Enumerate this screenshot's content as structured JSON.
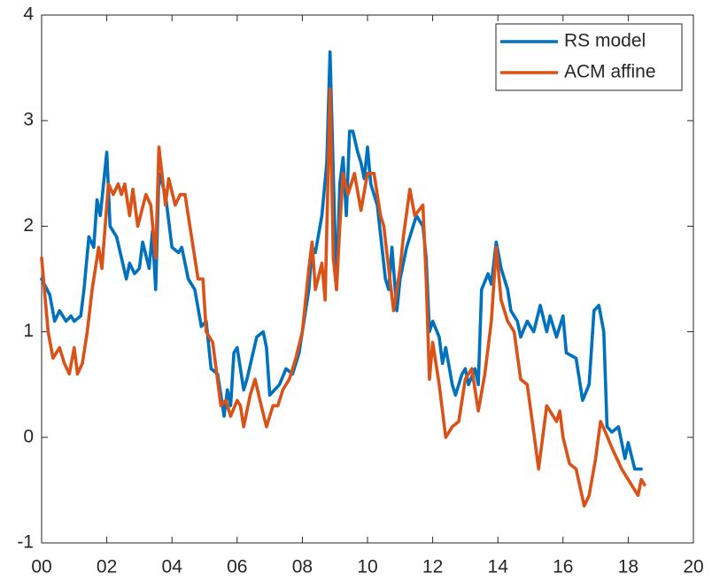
{
  "chart_data": {
    "type": "line",
    "series": [
      {
        "name": "RS model",
        "color": "#0072bd",
        "x": [
          0,
          0.25,
          0.4,
          0.55,
          0.75,
          0.9,
          1.0,
          1.2,
          1.3,
          1.45,
          1.6,
          1.7,
          1.8,
          2.0,
          2.1,
          2.3,
          2.6,
          2.7,
          2.85,
          3.0,
          3.1,
          3.3,
          3.4,
          3.5,
          3.6,
          3.8,
          4.0,
          4.2,
          4.3,
          4.5,
          4.7,
          4.9,
          5.05,
          5.2,
          5.4,
          5.6,
          5.7,
          5.8,
          5.9,
          6.0,
          6.2,
          6.3,
          6.6,
          6.8,
          6.9,
          7.0,
          7.3,
          7.5,
          7.7,
          7.9,
          8.0,
          8.2,
          8.3,
          8.4,
          8.6,
          8.75,
          8.85,
          8.95,
          9.05,
          9.15,
          9.25,
          9.35,
          9.45,
          9.55,
          9.7,
          9.8,
          9.9,
          10.0,
          10.1,
          10.3,
          10.55,
          10.65,
          10.75,
          10.9,
          11.0,
          11.2,
          11.4,
          11.5,
          11.7,
          11.8,
          11.9,
          12.0,
          12.2,
          12.3,
          12.4,
          12.6,
          12.7,
          12.9,
          13.0,
          13.1,
          13.3,
          13.4,
          13.5,
          13.7,
          13.8,
          13.95,
          14.1,
          14.3,
          14.4,
          14.6,
          14.7,
          14.9,
          15.1,
          15.3,
          15.5,
          15.6,
          15.8,
          16.0,
          16.1,
          16.4,
          16.6,
          16.8,
          16.95,
          17.1,
          17.25,
          17.35,
          17.5,
          17.7,
          17.9,
          18.0,
          18.2,
          18.4
        ],
        "values": [
          1.5,
          1.35,
          1.1,
          1.2,
          1.1,
          1.15,
          1.1,
          1.15,
          1.4,
          1.9,
          1.8,
          2.25,
          2.1,
          2.7,
          2.0,
          1.9,
          1.5,
          1.65,
          1.55,
          1.6,
          1.85,
          1.6,
          1.95,
          1.4,
          2.5,
          2.3,
          1.8,
          1.75,
          1.8,
          1.5,
          1.4,
          1.05,
          1.1,
          0.65,
          0.6,
          0.2,
          0.45,
          0.3,
          0.8,
          0.85,
          0.45,
          0.55,
          0.95,
          1.0,
          0.85,
          0.4,
          0.5,
          0.65,
          0.6,
          0.8,
          1.0,
          1.4,
          1.8,
          1.75,
          2.1,
          2.6,
          3.65,
          2.5,
          1.4,
          2.4,
          2.65,
          2.1,
          2.9,
          2.9,
          2.7,
          2.6,
          2.45,
          2.75,
          2.4,
          2.2,
          1.5,
          1.4,
          1.8,
          1.2,
          1.5,
          1.8,
          2.0,
          2.1,
          2.0,
          1.7,
          1.0,
          1.1,
          0.95,
          0.7,
          0.85,
          0.5,
          0.4,
          0.6,
          0.65,
          0.5,
          0.65,
          0.5,
          1.4,
          1.55,
          1.45,
          1.85,
          1.6,
          1.4,
          1.2,
          1.1,
          0.95,
          1.1,
          1.0,
          1.25,
          1.0,
          1.15,
          0.95,
          1.15,
          0.8,
          0.75,
          0.35,
          0.5,
          1.2,
          1.25,
          1.0,
          0.1,
          0.05,
          0.1,
          -0.2,
          -0.05,
          -0.3,
          -0.3
        ]
      },
      {
        "name": "ACM affine",
        "color": "#d95319",
        "x": [
          0,
          0.2,
          0.35,
          0.55,
          0.7,
          0.85,
          1.0,
          1.1,
          1.25,
          1.4,
          1.55,
          1.75,
          1.85,
          1.95,
          2.05,
          2.2,
          2.35,
          2.45,
          2.55,
          2.7,
          2.8,
          2.95,
          3.2,
          3.35,
          3.5,
          3.6,
          3.8,
          3.9,
          4.1,
          4.25,
          4.4,
          4.6,
          4.8,
          4.95,
          5.05,
          5.25,
          5.5,
          5.65,
          5.8,
          6.0,
          6.1,
          6.2,
          6.4,
          6.55,
          6.7,
          6.9,
          7.1,
          7.25,
          7.4,
          7.6,
          7.8,
          8.0,
          8.2,
          8.3,
          8.4,
          8.6,
          8.7,
          8.85,
          8.95,
          9.05,
          9.15,
          9.25,
          9.4,
          9.6,
          9.8,
          10.0,
          10.2,
          10.4,
          10.5,
          10.8,
          11.0,
          11.1,
          11.3,
          11.45,
          11.7,
          11.8,
          11.9,
          12.0,
          12.2,
          12.4,
          12.6,
          12.8,
          13.0,
          13.2,
          13.4,
          13.6,
          13.8,
          13.95,
          14.1,
          14.3,
          14.5,
          14.7,
          14.9,
          15.1,
          15.25,
          15.5,
          15.8,
          15.9,
          16.0,
          16.2,
          16.4,
          16.65,
          16.8,
          17.0,
          17.15,
          17.3,
          17.5,
          17.8,
          18.0,
          18.3,
          18.4,
          18.5
        ],
        "values": [
          1.7,
          1.0,
          0.75,
          0.85,
          0.7,
          0.6,
          0.85,
          0.6,
          0.7,
          1.0,
          1.4,
          1.8,
          1.6,
          2.0,
          2.4,
          2.3,
          2.4,
          2.3,
          2.4,
          2.1,
          2.35,
          2.0,
          2.3,
          2.2,
          1.7,
          2.75,
          2.2,
          2.45,
          2.2,
          2.3,
          2.3,
          1.9,
          1.5,
          1.5,
          1.0,
          0.9,
          0.3,
          0.35,
          0.2,
          0.35,
          0.3,
          0.1,
          0.4,
          0.55,
          0.35,
          0.1,
          0.3,
          0.3,
          0.45,
          0.55,
          0.75,
          1.0,
          1.6,
          1.85,
          1.4,
          1.65,
          1.3,
          3.3,
          1.7,
          1.4,
          2.0,
          2.5,
          2.3,
          2.5,
          2.15,
          2.5,
          2.5,
          2.1,
          2.0,
          1.2,
          1.6,
          1.9,
          2.35,
          2.1,
          2.2,
          1.5,
          0.55,
          0.9,
          0.5,
          0.0,
          0.1,
          0.15,
          0.55,
          0.65,
          0.25,
          0.6,
          1.1,
          1.8,
          1.3,
          1.1,
          1.0,
          0.55,
          0.5,
          0.05,
          -0.3,
          0.3,
          0.15,
          0.25,
          0.0,
          -0.25,
          -0.3,
          -0.65,
          -0.55,
          -0.2,
          0.15,
          0.05,
          -0.1,
          -0.3,
          -0.4,
          -0.55,
          -0.4,
          -0.45
        ]
      }
    ],
    "xlim": [
      0,
      20
    ],
    "xticks": [
      {
        "value": 0,
        "label": "00"
      },
      {
        "value": 2,
        "label": "02"
      },
      {
        "value": 4,
        "label": "04"
      },
      {
        "value": 6,
        "label": "06"
      },
      {
        "value": 8,
        "label": "08"
      },
      {
        "value": 10,
        "label": "10"
      },
      {
        "value": 12,
        "label": "12"
      },
      {
        "value": 14,
        "label": "14"
      },
      {
        "value": 16,
        "label": "16"
      },
      {
        "value": 18,
        "label": "18"
      },
      {
        "value": 20,
        "label": "20"
      }
    ],
    "ylim": [
      -1,
      4
    ],
    "yticks": [
      -1,
      0,
      1,
      2,
      3,
      4
    ],
    "grid": false,
    "legend": "top-right"
  }
}
